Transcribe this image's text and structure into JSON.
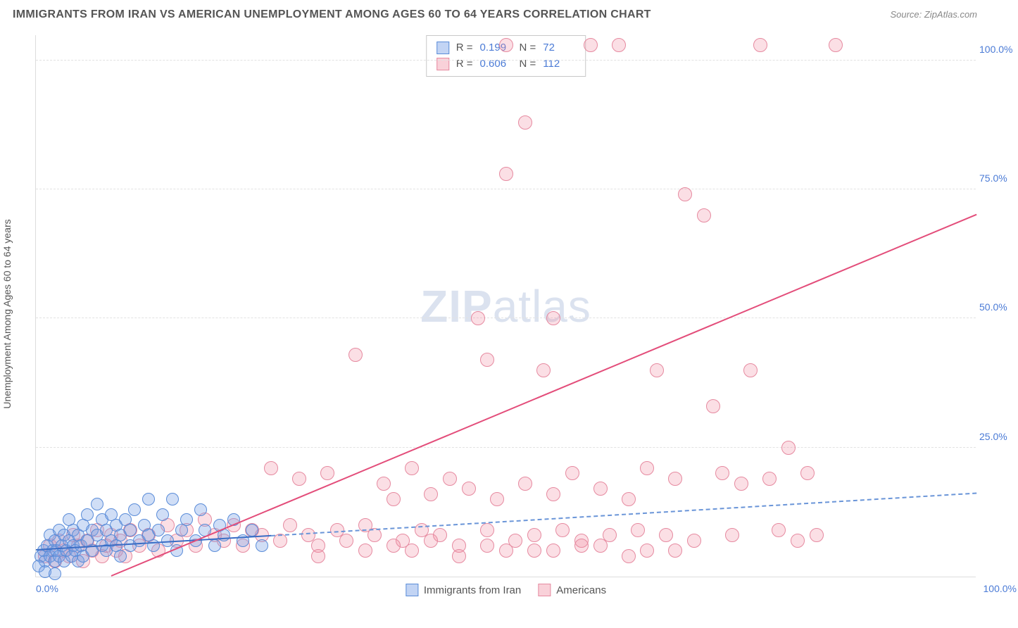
{
  "header": {
    "title": "IMMIGRANTS FROM IRAN VS AMERICAN UNEMPLOYMENT AMONG AGES 60 TO 64 YEARS CORRELATION CHART",
    "source": "Source: ZipAtlas.com"
  },
  "watermark": {
    "zip": "ZIP",
    "atlas": "atlas"
  },
  "axes": {
    "ylabel": "Unemployment Among Ages 60 to 64 years",
    "xlim": [
      0,
      100
    ],
    "ylim": [
      0,
      105
    ],
    "yticks": [
      {
        "v": 25,
        "label": "25.0%"
      },
      {
        "v": 50,
        "label": "50.0%"
      },
      {
        "v": 75,
        "label": "75.0%"
      },
      {
        "v": 100,
        "label": "100.0%"
      }
    ],
    "xticks": [
      {
        "v": 0,
        "label": "0.0%"
      },
      {
        "v": 100,
        "label": "100.0%"
      }
    ],
    "grid_color": "#e2e2e2",
    "axis_color": "#dddddd"
  },
  "legend_stats": {
    "rows": [
      {
        "series": "blue",
        "R": "0.199",
        "N": "72"
      },
      {
        "series": "pink",
        "R": "0.606",
        "N": "112"
      }
    ],
    "label_R": "R  =",
    "label_N": "N  ="
  },
  "bottom_legend": {
    "items": [
      {
        "series": "blue",
        "label": "Immigrants from Iran"
      },
      {
        "series": "pink",
        "label": "Americans"
      }
    ]
  },
  "series": {
    "blue": {
      "color_fill": "rgba(120,160,230,0.35)",
      "color_stroke": "#5a8cd8",
      "marker_radius": 9,
      "trend": {
        "x1": 0,
        "y1": 5.0,
        "x2": 100,
        "y2": 16.0,
        "solid_until_x": 25
      },
      "points": [
        [
          0.5,
          4
        ],
        [
          0.8,
          5
        ],
        [
          1,
          3
        ],
        [
          1.2,
          6
        ],
        [
          1.5,
          4
        ],
        [
          1.5,
          8
        ],
        [
          1.8,
          5
        ],
        [
          2,
          3
        ],
        [
          2,
          7
        ],
        [
          2.2,
          5
        ],
        [
          2.5,
          4
        ],
        [
          2.5,
          9
        ],
        [
          2.8,
          6
        ],
        [
          3,
          3
        ],
        [
          3,
          8
        ],
        [
          3.2,
          5
        ],
        [
          3.5,
          7
        ],
        [
          3.5,
          11
        ],
        [
          3.8,
          4
        ],
        [
          4,
          6
        ],
        [
          4,
          9
        ],
        [
          4.2,
          5
        ],
        [
          4.5,
          3
        ],
        [
          4.5,
          8
        ],
        [
          4.8,
          6
        ],
        [
          5,
          4
        ],
        [
          5,
          10
        ],
        [
          5.5,
          7
        ],
        [
          5.5,
          12
        ],
        [
          6,
          5
        ],
        [
          6,
          9
        ],
        [
          6.5,
          8
        ],
        [
          6.5,
          14
        ],
        [
          7,
          6
        ],
        [
          7,
          11
        ],
        [
          7.5,
          5
        ],
        [
          7.5,
          9
        ],
        [
          8,
          7
        ],
        [
          8,
          12
        ],
        [
          8.5,
          6
        ],
        [
          8.5,
          10
        ],
        [
          9,
          4
        ],
        [
          9,
          8
        ],
        [
          9.5,
          11
        ],
        [
          10,
          6
        ],
        [
          10,
          9
        ],
        [
          10.5,
          13
        ],
        [
          11,
          7
        ],
        [
          11.5,
          10
        ],
        [
          12,
          8
        ],
        [
          12,
          15
        ],
        [
          12.5,
          6
        ],
        [
          13,
          9
        ],
        [
          13.5,
          12
        ],
        [
          14,
          7
        ],
        [
          14.5,
          15
        ],
        [
          15,
          5
        ],
        [
          15.5,
          9
        ],
        [
          16,
          11
        ],
        [
          17,
          7
        ],
        [
          17.5,
          13
        ],
        [
          18,
          9
        ],
        [
          19,
          6
        ],
        [
          19.5,
          10
        ],
        [
          20,
          8
        ],
        [
          21,
          11
        ],
        [
          22,
          7
        ],
        [
          23,
          9
        ],
        [
          24,
          6
        ],
        [
          0.3,
          2
        ],
        [
          1,
          1
        ],
        [
          2,
          0.5
        ]
      ]
    },
    "pink": {
      "color_fill": "rgba(240,140,160,0.28)",
      "color_stroke": "#e68aa0",
      "marker_radius": 10,
      "trend": {
        "x1": 8,
        "y1": 0,
        "x2": 100,
        "y2": 70,
        "solid_until_x": 100
      },
      "points": [
        [
          1,
          4
        ],
        [
          1.5,
          6
        ],
        [
          2,
          3
        ],
        [
          2.5,
          7
        ],
        [
          3,
          5
        ],
        [
          3.5,
          4
        ],
        [
          4,
          8
        ],
        [
          4.5,
          6
        ],
        [
          5,
          3
        ],
        [
          5.5,
          7
        ],
        [
          6,
          5
        ],
        [
          6.5,
          9
        ],
        [
          7,
          4
        ],
        [
          7.5,
          6
        ],
        [
          8,
          8
        ],
        [
          8.5,
          5
        ],
        [
          9,
          7
        ],
        [
          9.5,
          4
        ],
        [
          10,
          9
        ],
        [
          11,
          6
        ],
        [
          12,
          8
        ],
        [
          13,
          5
        ],
        [
          14,
          10
        ],
        [
          15,
          7
        ],
        [
          16,
          9
        ],
        [
          17,
          6
        ],
        [
          18,
          11
        ],
        [
          19,
          8
        ],
        [
          20,
          7
        ],
        [
          21,
          10
        ],
        [
          22,
          6
        ],
        [
          23,
          9
        ],
        [
          24,
          8
        ],
        [
          25,
          21
        ],
        [
          26,
          7
        ],
        [
          27,
          10
        ],
        [
          28,
          19
        ],
        [
          29,
          8
        ],
        [
          30,
          6
        ],
        [
          31,
          20
        ],
        [
          32,
          9
        ],
        [
          33,
          7
        ],
        [
          34,
          43
        ],
        [
          35,
          10
        ],
        [
          36,
          8
        ],
        [
          37,
          18
        ],
        [
          38,
          15
        ],
        [
          39,
          7
        ],
        [
          40,
          21
        ],
        [
          41,
          9
        ],
        [
          42,
          16
        ],
        [
          43,
          8
        ],
        [
          44,
          19
        ],
        [
          45,
          6
        ],
        [
          46,
          17
        ],
        [
          47,
          50
        ],
        [
          48,
          9
        ],
        [
          48,
          42
        ],
        [
          49,
          15
        ],
        [
          50,
          103
        ],
        [
          50,
          78
        ],
        [
          51,
          7
        ],
        [
          52,
          18
        ],
        [
          52,
          88
        ],
        [
          53,
          8
        ],
        [
          54,
          40
        ],
        [
          55,
          16
        ],
        [
          55,
          50
        ],
        [
          56,
          9
        ],
        [
          57,
          20
        ],
        [
          58,
          7
        ],
        [
          59,
          103
        ],
        [
          60,
          17
        ],
        [
          61,
          8
        ],
        [
          62,
          103
        ],
        [
          63,
          15
        ],
        [
          64,
          9
        ],
        [
          65,
          21
        ],
        [
          66,
          40
        ],
        [
          67,
          8
        ],
        [
          68,
          19
        ],
        [
          69,
          74
        ],
        [
          70,
          7
        ],
        [
          71,
          70
        ],
        [
          72,
          33
        ],
        [
          73,
          20
        ],
        [
          74,
          8
        ],
        [
          75,
          18
        ],
        [
          76,
          40
        ],
        [
          77,
          103
        ],
        [
          78,
          19
        ],
        [
          79,
          9
        ],
        [
          80,
          25
        ],
        [
          81,
          7
        ],
        [
          82,
          20
        ],
        [
          83,
          8
        ],
        [
          85,
          103
        ],
        [
          50,
          5
        ],
        [
          40,
          5
        ],
        [
          35,
          5
        ],
        [
          30,
          4
        ],
        [
          45,
          4
        ],
        [
          55,
          5
        ],
        [
          60,
          6
        ],
        [
          65,
          5
        ],
        [
          38,
          6
        ],
        [
          42,
          7
        ],
        [
          48,
          6
        ],
        [
          53,
          5
        ],
        [
          58,
          6
        ],
        [
          63,
          4
        ],
        [
          68,
          5
        ]
      ]
    }
  },
  "colors": {
    "title": "#555555",
    "source": "#888888",
    "tick": "#4b7bd6",
    "watermark": "#c8d4e8"
  }
}
